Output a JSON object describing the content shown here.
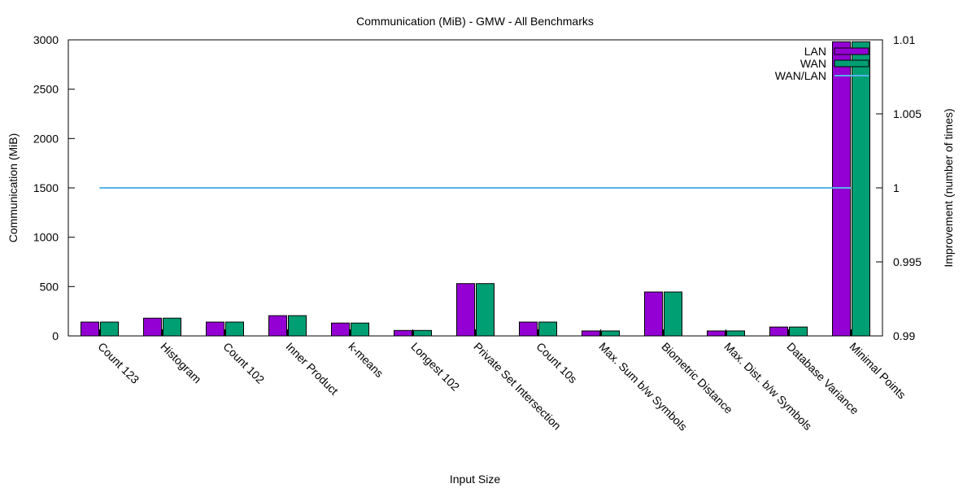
{
  "chart_data": {
    "type": "bar",
    "title": "Communication (MiB) - GMW - All Benchmarks",
    "xlabel": "Input Size",
    "ylabel": "Communication (MiB)",
    "y2label": "Improvement (number of times)",
    "ylim": [
      0,
      3000
    ],
    "y2lim": [
      0.99,
      1.01
    ],
    "yticks": [
      "0",
      "500",
      "1000",
      "1500",
      "2000",
      "2500",
      "3000"
    ],
    "y2ticks": [
      "0.99",
      "0.995",
      "1",
      "1.005",
      "1.01"
    ],
    "categories": [
      "Count 123",
      "Histogram",
      "Count 102",
      "Inner Product",
      "k-means",
      "Longest 102",
      "Private Set Intersection",
      "Count 10s",
      "Max. Sum b/w Symbols",
      "Biometric Distance",
      "Max. Dist. b/w Symbols",
      "Database Variance",
      "Minimal Points"
    ],
    "series": [
      {
        "name": "LAN",
        "type": "bar",
        "axis": "left",
        "color": "#9400d3",
        "values": [
          140,
          180,
          140,
          205,
          130,
          55,
          530,
          140,
          50,
          445,
          50,
          90,
          2980
        ]
      },
      {
        "name": "WAN",
        "type": "bar",
        "axis": "left",
        "color": "#009e73",
        "values": [
          140,
          180,
          140,
          205,
          130,
          55,
          530,
          140,
          50,
          445,
          50,
          90,
          2980
        ]
      },
      {
        "name": "WAN/LAN",
        "type": "line",
        "axis": "right",
        "color": "#56b4e9",
        "values": [
          1,
          1,
          1,
          1,
          1,
          1,
          1,
          1,
          1,
          1,
          1,
          1,
          1
        ]
      }
    ],
    "grid": false,
    "legend_position": "top-right"
  }
}
